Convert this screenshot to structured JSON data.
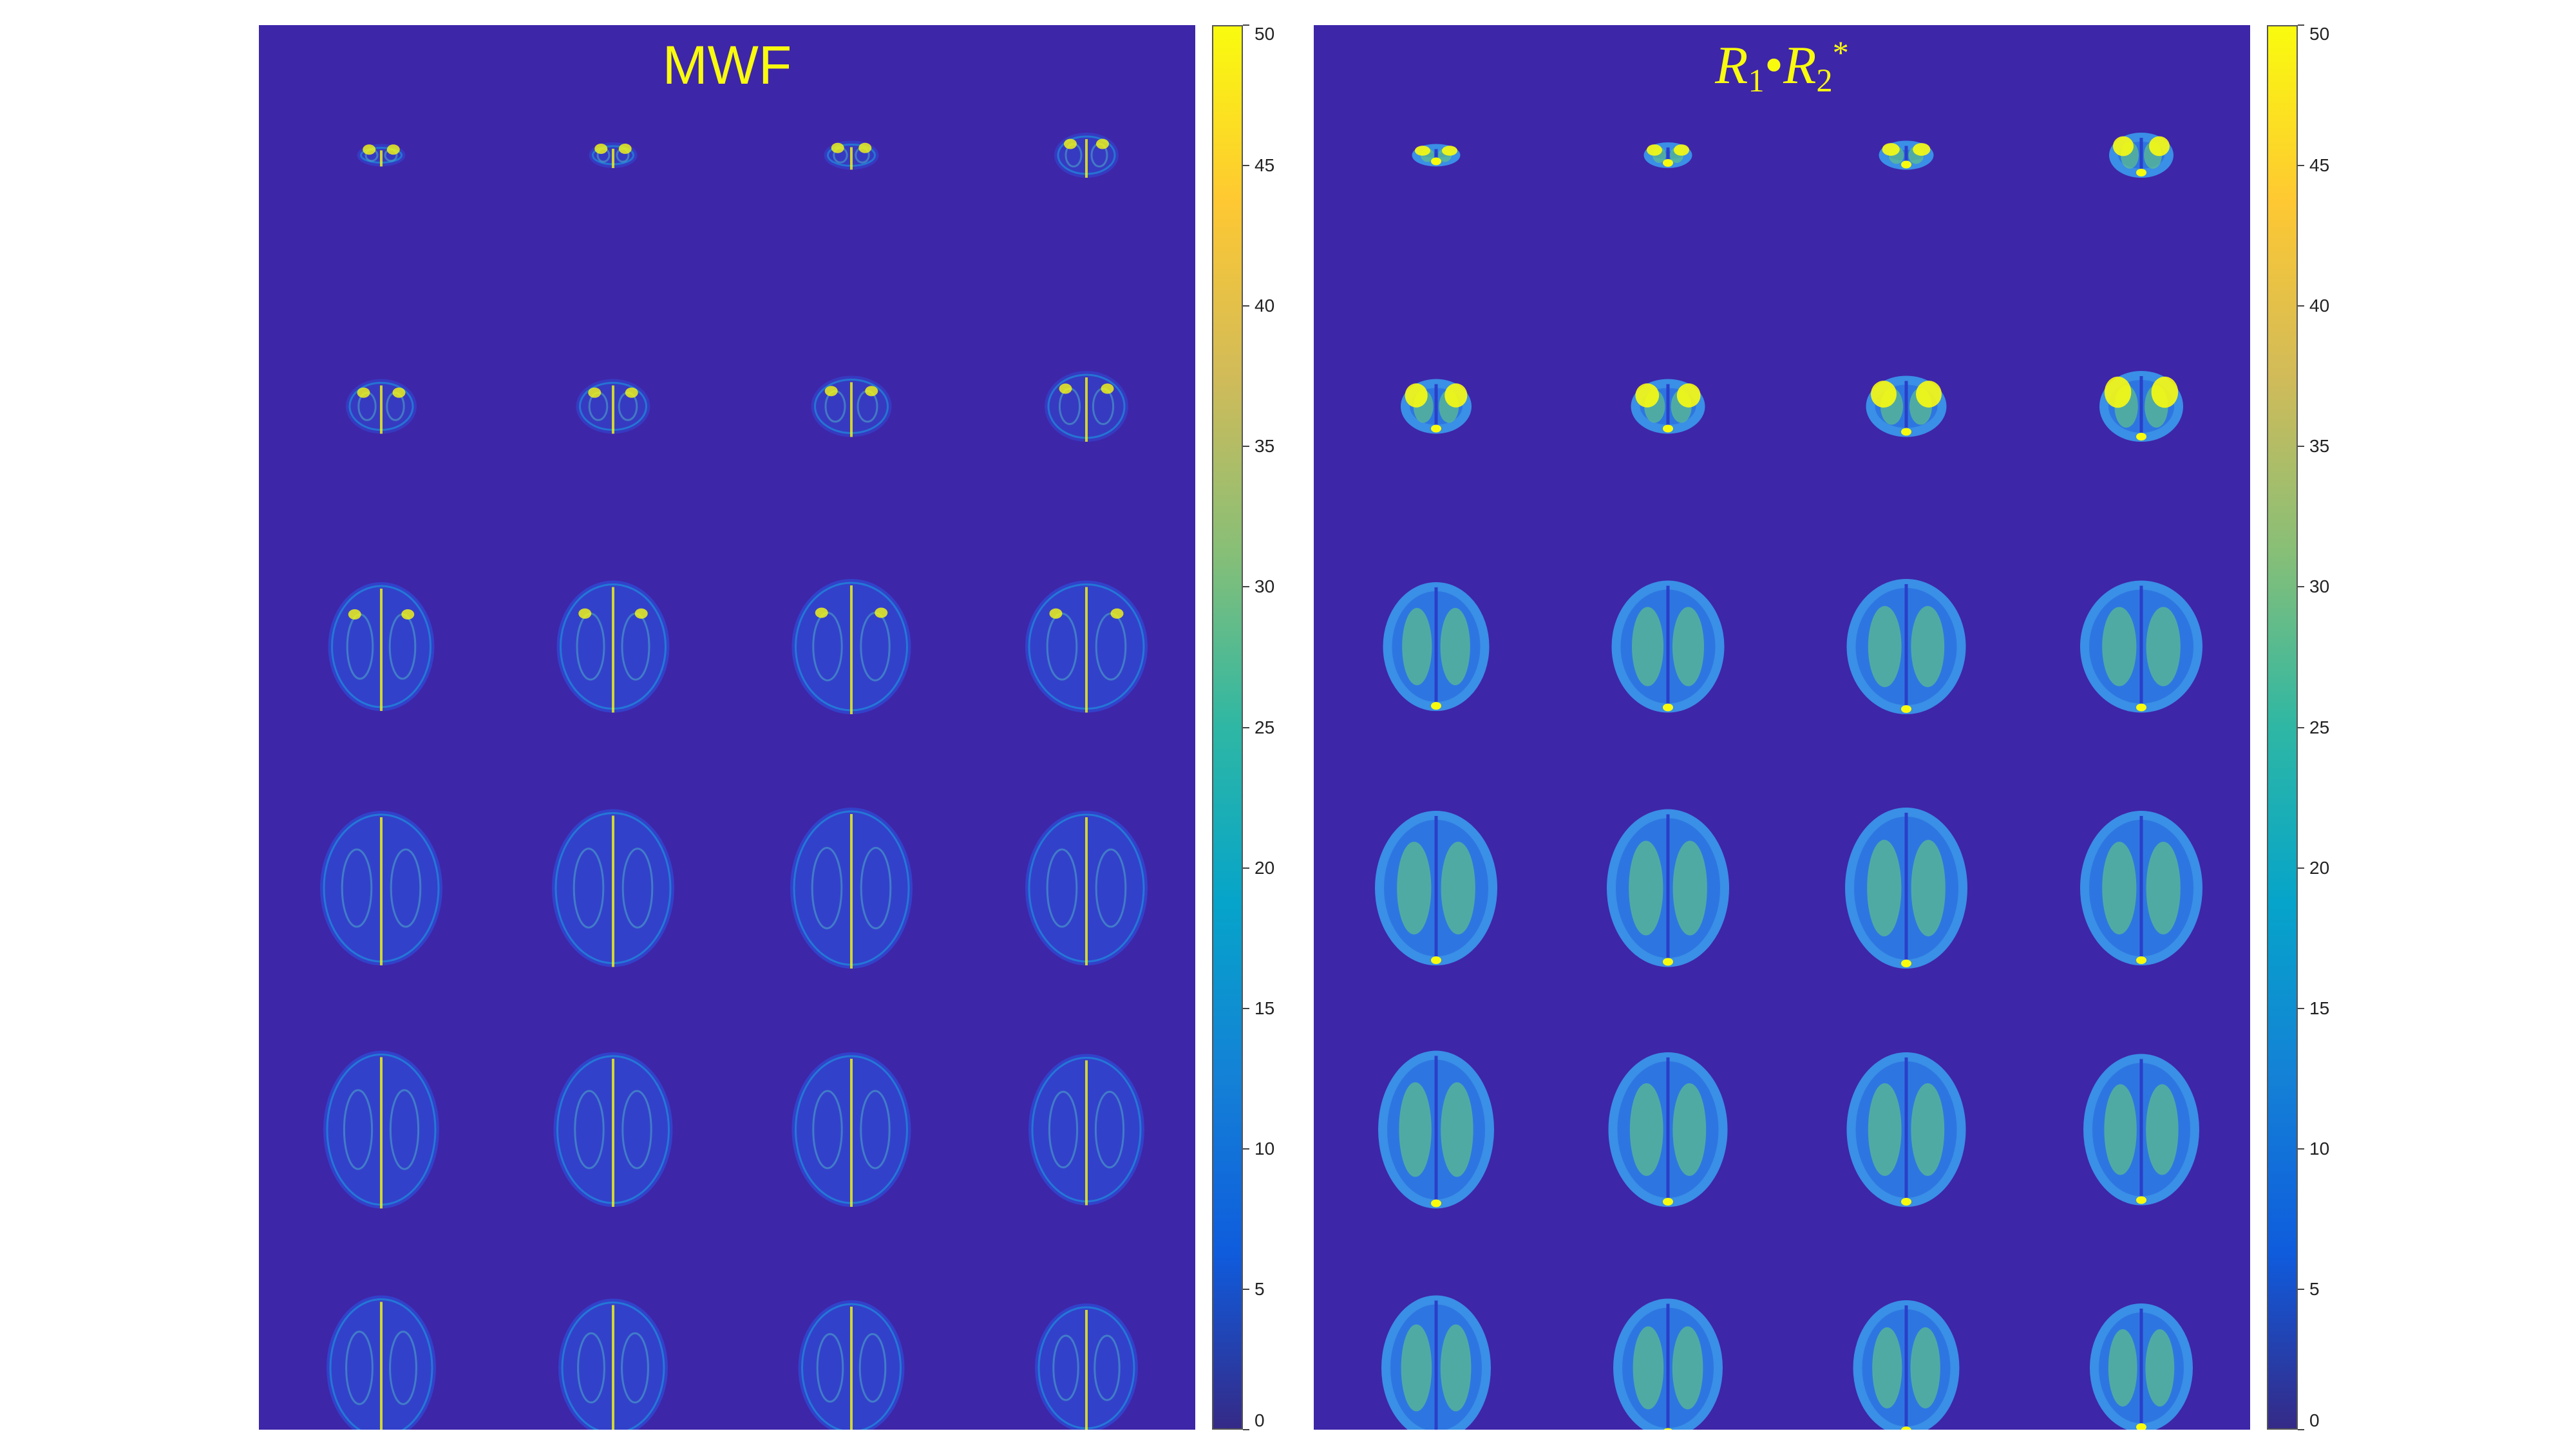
{
  "panels": [
    {
      "id": "mwf",
      "title": "MWF"
    },
    {
      "id": "r1r2",
      "title_parts": {
        "r1": "R",
        "sub1": "1",
        "dot": "•",
        "r2": "R",
        "sub2": "2",
        "sup": "*"
      }
    }
  ],
  "colorbar": {
    "min": 0,
    "max": 50,
    "tick_labels": [
      "0",
      "5",
      "10",
      "15",
      "20",
      "25",
      "30",
      "35",
      "40",
      "45",
      "50"
    ],
    "colormap": "parula",
    "colors": [
      "#352a87",
      "#0f5cdd",
      "#1481d6",
      "#06a4ca",
      "#2eb7a4",
      "#87bf77",
      "#d1bb59",
      "#fec832",
      "#f9fb0e"
    ]
  },
  "grid": {
    "rows": 6,
    "cols": 4
  },
  "colors": {
    "background": "#3e26a8",
    "highlight": "#f9fb0e"
  }
}
